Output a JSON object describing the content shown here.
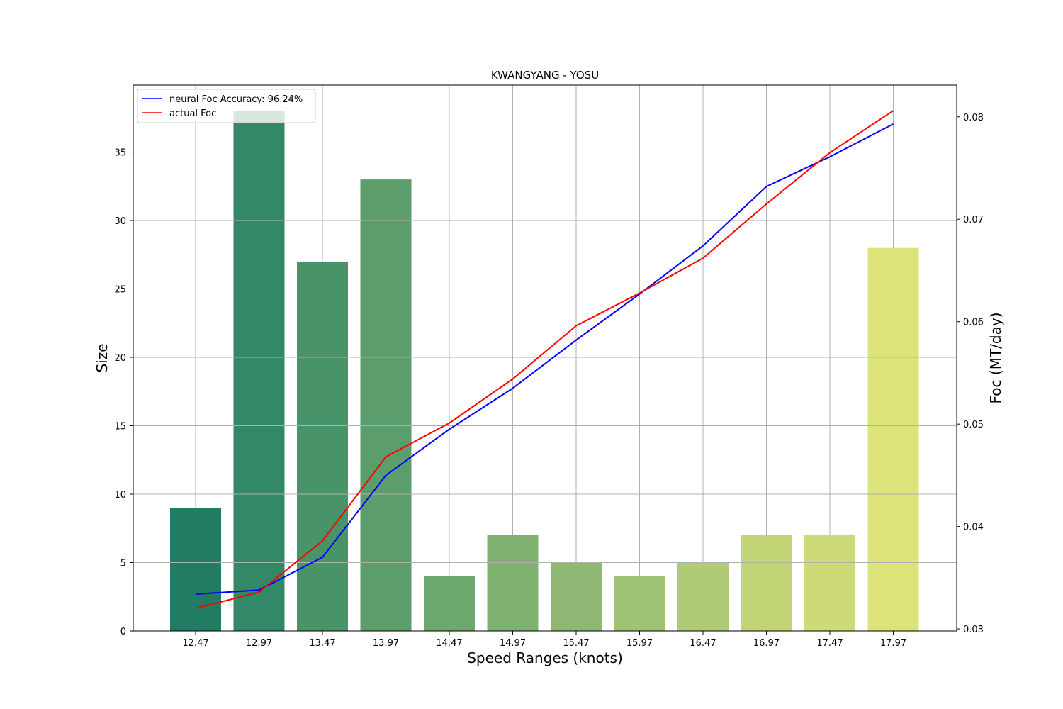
{
  "chart_data": {
    "type": "bar",
    "title": "KWANGYANG - YOSU",
    "xlabel": "Speed Ranges (knots)",
    "ylabel": "Size",
    "y2label": "Foc (MT/day)",
    "categories": [
      "12.47",
      "12.97",
      "13.47",
      "13.97",
      "14.47",
      "14.97",
      "15.47",
      "15.97",
      "16.47",
      "16.97",
      "17.47",
      "17.97"
    ],
    "bar_values": [
      9,
      38,
      27,
      33,
      4,
      7,
      5,
      4,
      5,
      7,
      7,
      28
    ],
    "bar_colors": [
      "#227c64",
      "#338867",
      "#489468",
      "#5b9e6c",
      "#6da86e",
      "#7fb171",
      "#90b874",
      "#a0c275",
      "#b0cb76",
      "#c1d577",
      "#ced977",
      "#dce479"
    ],
    "ylim": [
      0,
      39.9
    ],
    "yticks": [
      0,
      5,
      10,
      15,
      20,
      25,
      30,
      35
    ],
    "y2lim": [
      0.0298,
      0.0831
    ],
    "y2ticks": [
      0.03,
      0.04,
      0.05,
      0.06,
      0.07,
      0.08
    ],
    "y2tick_labels": [
      "0.03",
      "0.04",
      "0.05",
      "0.06",
      "0.07",
      "0.08"
    ],
    "grid": true,
    "legend_position": "upper-left",
    "series": [
      {
        "name": "neural Foc Accuracy: 96.24%",
        "color": "#0000ff",
        "axis": "right",
        "values": [
          0.0334,
          0.0338,
          0.037,
          0.045,
          0.0495,
          0.0535,
          0.0582,
          0.0627,
          0.0674,
          0.0732,
          0.0761,
          0.0793
        ]
      },
      {
        "name": "actual Foc",
        "color": "#ff0000",
        "axis": "right",
        "values": [
          0.032,
          0.0336,
          0.0386,
          0.0468,
          0.0501,
          0.0544,
          0.0596,
          0.0628,
          0.0662,
          0.0715,
          0.0765,
          0.0806
        ]
      }
    ]
  }
}
